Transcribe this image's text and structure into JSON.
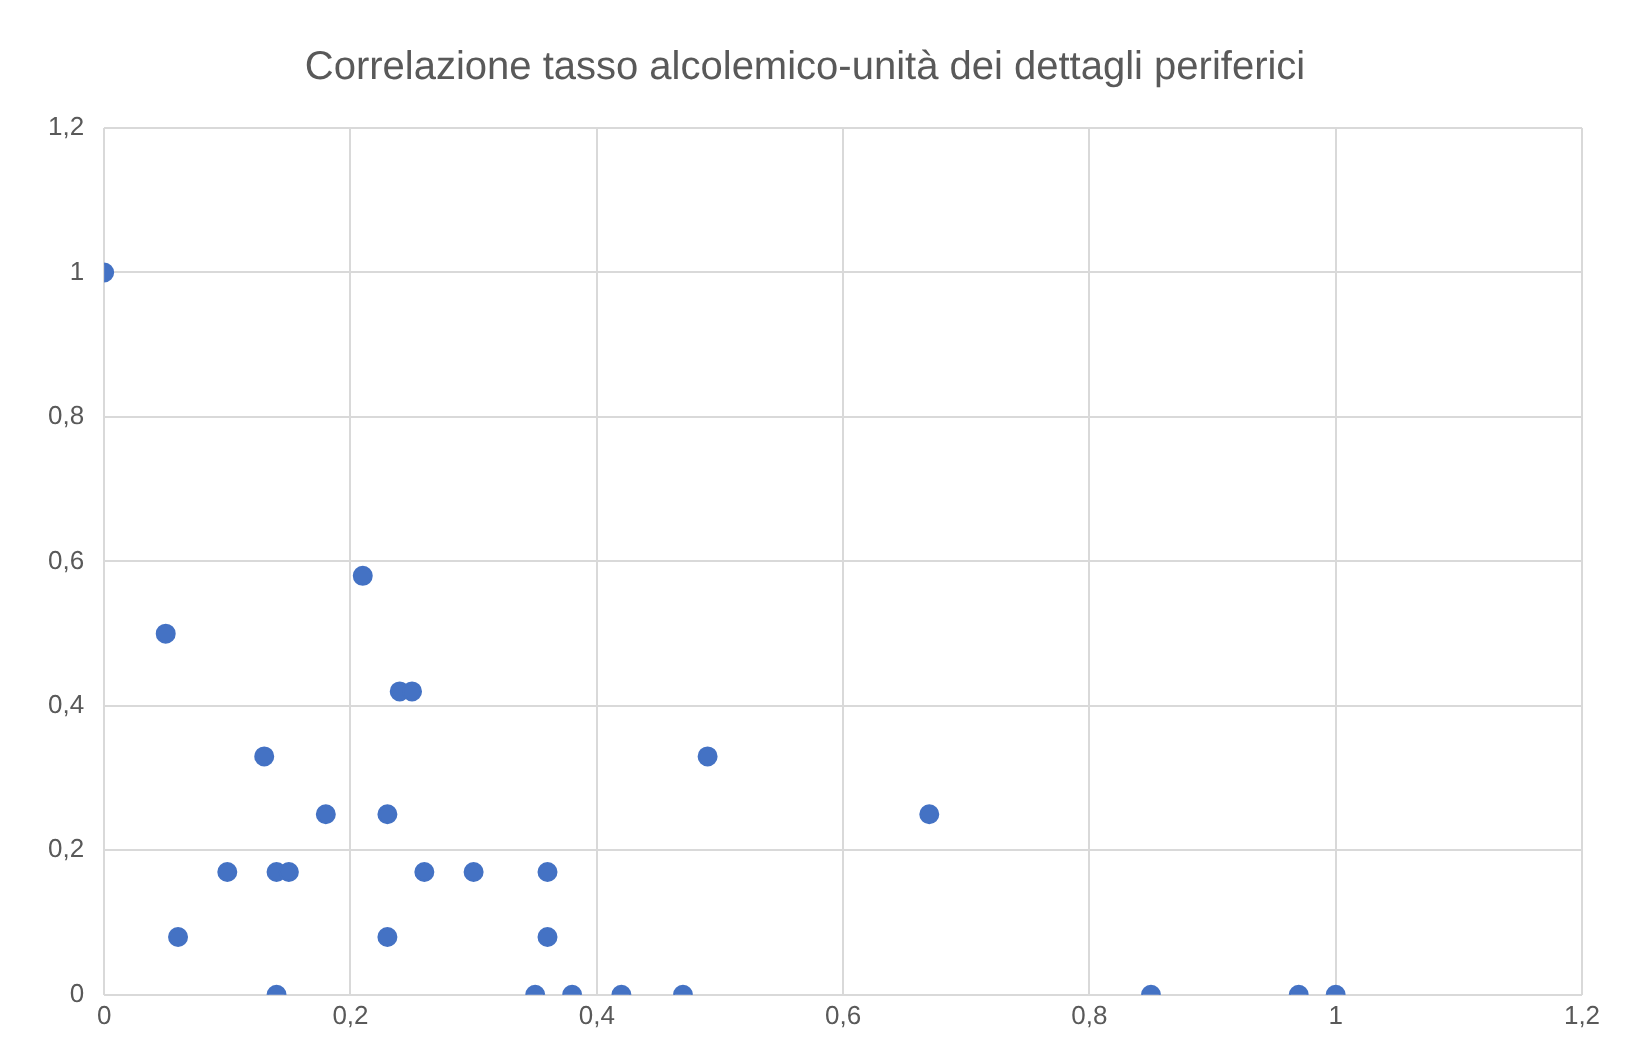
{
  "chart_data": {
    "type": "scatter",
    "title": "Correlazione tasso alcolemico-unità dei dettagli periferici",
    "x": [
      0,
      0.05,
      0.06,
      0.1,
      0.13,
      0.14,
      0.14,
      0.15,
      0.18,
      0.21,
      0.23,
      0.23,
      0.24,
      0.25,
      0.26,
      0.3,
      0.35,
      0.36,
      0.36,
      0.38,
      0.42,
      0.47,
      0.49,
      0.67,
      0.85,
      0.97,
      1
    ],
    "values": [
      1,
      0.5,
      0.08,
      0.17,
      0.33,
      0.17,
      0,
      0.17,
      0.25,
      0.58,
      0.25,
      0.08,
      0.42,
      0.42,
      0.17,
      0.17,
      0,
      0.17,
      0.08,
      0,
      0,
      0,
      0.33,
      0.25,
      0,
      0,
      0
    ],
    "color": "#4472c4",
    "marker": "circle",
    "grid": true,
    "legend": false,
    "xlim": [
      0,
      1.2
    ],
    "xticks": [
      {
        "value": 0,
        "label": "0"
      },
      {
        "value": 0.2,
        "label": "0,2"
      },
      {
        "value": 0.4,
        "label": "0,4"
      },
      {
        "value": 0.6,
        "label": "0,6"
      },
      {
        "value": 0.8,
        "label": "0,8"
      },
      {
        "value": 1,
        "label": "1"
      },
      {
        "value": 1.2,
        "label": "1,2"
      }
    ],
    "ylim": [
      0,
      1.2
    ],
    "yticks": [
      {
        "value": 0,
        "label": "0"
      },
      {
        "value": 0.2,
        "label": "0,2"
      },
      {
        "value": 0.4,
        "label": "0,4"
      },
      {
        "value": 0.6,
        "label": "0,6"
      },
      {
        "value": 0.8,
        "label": "0,8"
      },
      {
        "value": 1,
        "label": "1"
      },
      {
        "value": 1.2,
        "label": "1,2"
      }
    ]
  }
}
